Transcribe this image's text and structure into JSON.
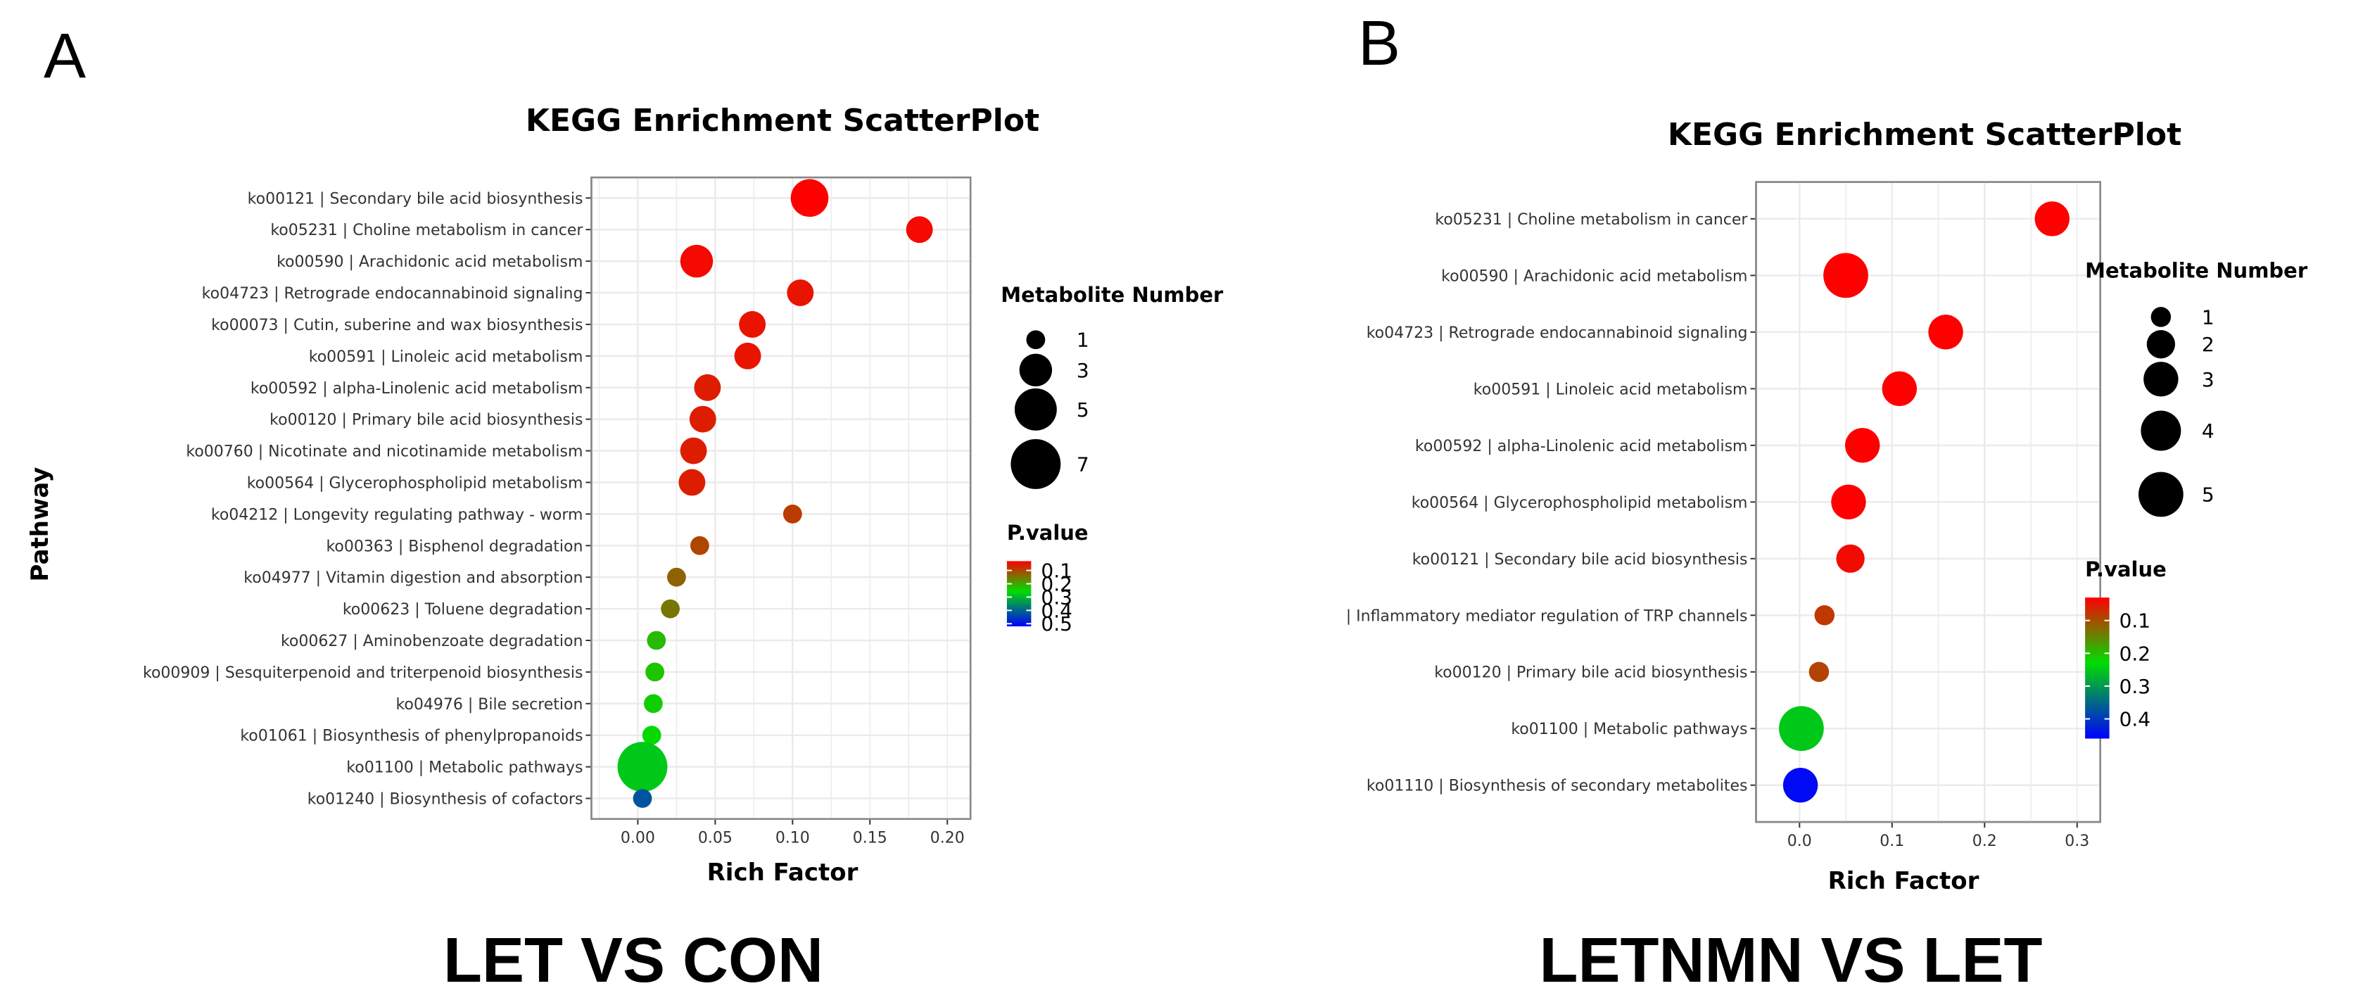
{
  "colors": {
    "high_p": "#0000FF",
    "mid_p": "#00DD00",
    "low_p": "#FF0000",
    "grid": "#EBEBEB",
    "panel_border": "#888888"
  },
  "panels": [
    {
      "letter": "A",
      "caption": "LET VS CON",
      "chart_data": {
        "type": "scatter",
        "title": "KEGG Enrichment ScatterPlot",
        "xlabel": "Rich Factor",
        "ylabel": "Pathway",
        "xlim": [
          -0.03,
          0.215
        ],
        "xticks": [
          0.0,
          0.05,
          0.1,
          0.15,
          0.2
        ],
        "xtick_labels": [
          "0.00",
          "0.05",
          "0.10",
          "0.15",
          "0.20"
        ],
        "size_legend": {
          "title": "Metabolite Number",
          "values": [
            1,
            3,
            5,
            7
          ],
          "labels": [
            "1",
            "3",
            "5",
            "7"
          ]
        },
        "color_legend": {
          "title": "P.value",
          "min": 0.03,
          "max": 0.52,
          "ticks": [
            0.1,
            0.2,
            0.3,
            0.4,
            0.5
          ],
          "labels": [
            "0.1",
            "0.2",
            "0.3",
            "0.4",
            "0.5"
          ]
        },
        "points": [
          {
            "pathway": "ko00121 | Secondary bile acid biosynthesis",
            "rich_factor": 0.111,
            "count": 4,
            "pvalue": 0.03
          },
          {
            "pathway": "ko05231 | Choline metabolism in cancer",
            "rich_factor": 0.182,
            "count": 2,
            "pvalue": 0.04
          },
          {
            "pathway": "ko00590 | Arachidonic acid metabolism",
            "rich_factor": 0.038,
            "count": 3,
            "pvalue": 0.04
          },
          {
            "pathway": "ko04723 | Retrograde endocannabinoid signaling",
            "rich_factor": 0.105,
            "count": 2,
            "pvalue": 0.05
          },
          {
            "pathway": "ko00073 | Cutin, suberine and wax biosynthesis",
            "rich_factor": 0.074,
            "count": 2,
            "pvalue": 0.05
          },
          {
            "pathway": "ko00591 | Linoleic acid metabolism",
            "rich_factor": 0.071,
            "count": 2,
            "pvalue": 0.05
          },
          {
            "pathway": "ko00592 | alpha-Linolenic acid metabolism",
            "rich_factor": 0.045,
            "count": 2,
            "pvalue": 0.06
          },
          {
            "pathway": "ko00120 | Primary bile acid biosynthesis",
            "rich_factor": 0.042,
            "count": 2,
            "pvalue": 0.06
          },
          {
            "pathway": "ko00760 | Nicotinate and nicotinamide metabolism",
            "rich_factor": 0.036,
            "count": 2,
            "pvalue": 0.06
          },
          {
            "pathway": "ko00564 | Glycerophospholipid metabolism",
            "rich_factor": 0.035,
            "count": 2,
            "pvalue": 0.06
          },
          {
            "pathway": "ko04212 | Longevity regulating pathway - worm",
            "rich_factor": 0.1,
            "count": 1,
            "pvalue": 0.09
          },
          {
            "pathway": "ko00363 | Bisphenol degradation",
            "rich_factor": 0.04,
            "count": 1,
            "pvalue": 0.1
          },
          {
            "pathway": "ko04977 | Vitamin digestion and absorption",
            "rich_factor": 0.025,
            "count": 1,
            "pvalue": 0.13
          },
          {
            "pathway": "ko00623 | Toluene degradation",
            "rich_factor": 0.021,
            "count": 1,
            "pvalue": 0.15
          },
          {
            "pathway": "ko00627 | Aminobenzoate degradation",
            "rich_factor": 0.012,
            "count": 1,
            "pvalue": 0.22
          },
          {
            "pathway": "ko00909 | Sesquiterpenoid and triterpenoid biosynthesis",
            "rich_factor": 0.011,
            "count": 1,
            "pvalue": 0.23
          },
          {
            "pathway": "ko04976 | Bile secretion",
            "rich_factor": 0.01,
            "count": 1,
            "pvalue": 0.24
          },
          {
            "pathway": "ko01061 | Biosynthesis of phenylpropanoids",
            "rich_factor": 0.009,
            "count": 1,
            "pvalue": 0.25
          },
          {
            "pathway": "ko01100 | Metabolic pathways",
            "rich_factor": 0.003,
            "count": 7,
            "pvalue": 0.28
          },
          {
            "pathway": "ko01240 | Biosynthesis of cofactors",
            "rich_factor": 0.003,
            "count": 1,
            "pvalue": 0.42
          }
        ]
      }
    },
    {
      "letter": "B",
      "caption": "LETNMN VS LET",
      "chart_data": {
        "type": "scatter",
        "title": "KEGG Enrichment ScatterPlot",
        "xlabel": "Rich Factor",
        "ylabel": "",
        "xlim": [
          -0.047,
          0.325
        ],
        "xticks": [
          0.0,
          0.1,
          0.2,
          0.3
        ],
        "xtick_labels": [
          "0.0",
          "0.1",
          "0.2",
          "0.3"
        ],
        "size_legend": {
          "title": "Metabolite Number",
          "values": [
            1,
            2,
            3,
            4,
            5
          ],
          "labels": [
            "1",
            "2",
            "3",
            "4",
            "5"
          ]
        },
        "color_legend": {
          "title": "P.value",
          "min": 0.03,
          "max": 0.46,
          "ticks": [
            0.1,
            0.2,
            0.3,
            0.4
          ],
          "labels": [
            "0.1",
            "0.2",
            "0.3",
            "0.4"
          ]
        },
        "points": [
          {
            "pathway": "ko05231 | Choline metabolism in cancer",
            "rich_factor": 0.273,
            "count": 3,
            "pvalue": 0.03
          },
          {
            "pathway": "ko00590 | Arachidonic acid metabolism",
            "rich_factor": 0.05,
            "count": 5,
            "pvalue": 0.03
          },
          {
            "pathway": "ko04723 | Retrograde endocannabinoid signaling",
            "rich_factor": 0.158,
            "count": 3,
            "pvalue": 0.03
          },
          {
            "pathway": "ko00591 | Linoleic acid metabolism",
            "rich_factor": 0.108,
            "count": 3,
            "pvalue": 0.03
          },
          {
            "pathway": "ko00592 | alpha-Linolenic acid metabolism",
            "rich_factor": 0.068,
            "count": 3,
            "pvalue": 0.03
          },
          {
            "pathway": "ko00564 | Glycerophospholipid metabolism",
            "rich_factor": 0.053,
            "count": 3,
            "pvalue": 0.03
          },
          {
            "pathway": "ko00121 | Secondary bile acid biosynthesis",
            "rich_factor": 0.055,
            "count": 2,
            "pvalue": 0.04
          },
          {
            "pathway": "| Inflammatory mediator regulation of TRP channels",
            "rich_factor": 0.027,
            "count": 1,
            "pvalue": 0.08
          },
          {
            "pathway": "ko00120 | Primary bile acid biosynthesis",
            "rich_factor": 0.021,
            "count": 1,
            "pvalue": 0.09
          },
          {
            "pathway": "ko01100 | Metabolic pathways",
            "rich_factor": 0.002,
            "count": 5,
            "pvalue": 0.25
          },
          {
            "pathway": "ko01110 | Biosynthesis of secondary metabolites",
            "rich_factor": 0.001,
            "count": 3,
            "pvalue": 0.45
          }
        ]
      }
    }
  ]
}
